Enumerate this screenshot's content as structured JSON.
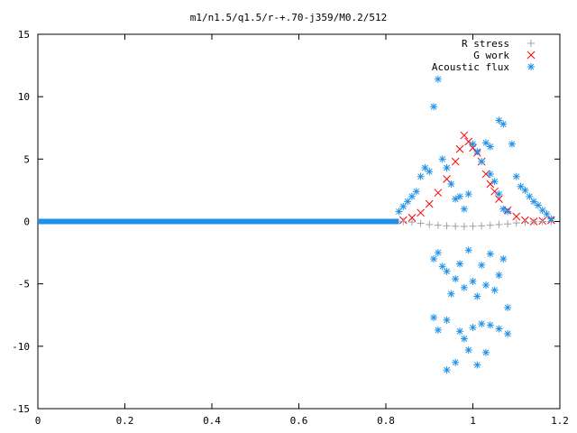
{
  "chart_data": {
    "type": "scatter",
    "title": "m1/n1.5/q1.5/r-+.70-j359/M0.2/512",
    "xlabel": "",
    "ylabel": "",
    "xlim": [
      0,
      1.2
    ],
    "ylim": [
      -15,
      15
    ],
    "x_ticks": [
      0,
      0.2,
      0.4,
      0.6,
      0.8,
      1,
      1.2
    ],
    "x_tick_labels": [
      "0",
      "0.2",
      "0.4",
      "0.6",
      "0.8",
      "1",
      "1.2"
    ],
    "y_ticks": [
      -15,
      -10,
      -5,
      0,
      5,
      10,
      15
    ],
    "y_tick_labels": [
      "-15",
      "-10",
      "-5",
      "0",
      "5",
      "10",
      "15"
    ],
    "grid": false,
    "legend_position": "top-right",
    "series": [
      {
        "name": "R stress",
        "marker": "+",
        "color": "#a0a0a0",
        "points": [
          [
            0.84,
            0.0
          ],
          [
            0.86,
            -0.05
          ],
          [
            0.88,
            -0.15
          ],
          [
            0.9,
            -0.25
          ],
          [
            0.92,
            -0.3
          ],
          [
            0.94,
            -0.35
          ],
          [
            0.96,
            -0.38
          ],
          [
            0.98,
            -0.4
          ],
          [
            1.0,
            -0.38
          ],
          [
            1.02,
            -0.35
          ],
          [
            1.04,
            -0.3
          ],
          [
            1.06,
            -0.25
          ],
          [
            1.08,
            -0.2
          ],
          [
            1.1,
            -0.12
          ],
          [
            1.12,
            -0.06
          ],
          [
            1.14,
            -0.02
          ],
          [
            1.16,
            0.0
          ],
          [
            1.18,
            0.0
          ]
        ]
      },
      {
        "name": "G work",
        "marker": "x",
        "color": "#ff0000",
        "points": [
          [
            0.84,
            0.1
          ],
          [
            0.86,
            0.3
          ],
          [
            0.88,
            0.7
          ],
          [
            0.9,
            1.4
          ],
          [
            0.92,
            2.3
          ],
          [
            0.94,
            3.4
          ],
          [
            0.96,
            4.8
          ],
          [
            0.97,
            5.8
          ],
          [
            0.98,
            6.9
          ],
          [
            0.99,
            6.4
          ],
          [
            1.0,
            5.9
          ],
          [
            1.01,
            5.5
          ],
          [
            1.02,
            4.8
          ],
          [
            1.03,
            3.8
          ],
          [
            1.04,
            3.0
          ],
          [
            1.05,
            2.4
          ],
          [
            1.06,
            1.8
          ],
          [
            1.08,
            0.9
          ],
          [
            1.1,
            0.4
          ],
          [
            1.12,
            0.1
          ],
          [
            1.14,
            0.0
          ],
          [
            1.16,
            0.05
          ],
          [
            1.18,
            0.1
          ]
        ]
      },
      {
        "name": "Acoustic flux",
        "marker": "*",
        "color": "#1e90e8",
        "points": [
          [
            0.83,
            0.8
          ],
          [
            0.84,
            1.2
          ],
          [
            0.85,
            1.6
          ],
          [
            0.86,
            2.0
          ],
          [
            0.87,
            2.4
          ],
          [
            0.88,
            3.6
          ],
          [
            0.89,
            4.3
          ],
          [
            0.9,
            4.0
          ],
          [
            0.91,
            9.2
          ],
          [
            0.92,
            11.4
          ],
          [
            0.93,
            5.0
          ],
          [
            0.94,
            4.3
          ],
          [
            0.95,
            3.0
          ],
          [
            0.96,
            1.8
          ],
          [
            0.97,
            2.0
          ],
          [
            0.98,
            1.0
          ],
          [
            0.99,
            2.2
          ],
          [
            1.0,
            6.2
          ],
          [
            1.01,
            5.6
          ],
          [
            1.02,
            4.8
          ],
          [
            1.03,
            6.3
          ],
          [
            1.04,
            3.8
          ],
          [
            1.05,
            3.2
          ],
          [
            1.06,
            2.2
          ],
          [
            1.07,
            1.0
          ],
          [
            1.08,
            0.8
          ],
          [
            1.09,
            6.2
          ],
          [
            1.1,
            3.6
          ],
          [
            1.11,
            2.8
          ],
          [
            1.12,
            2.5
          ],
          [
            1.13,
            2.0
          ],
          [
            1.14,
            1.6
          ],
          [
            1.15,
            1.3
          ],
          [
            1.16,
            0.9
          ],
          [
            1.17,
            0.6
          ],
          [
            1.18,
            0.2
          ],
          [
            1.06,
            8.1
          ],
          [
            1.07,
            7.8
          ],
          [
            1.04,
            6.0
          ],
          [
            0.92,
            -2.5
          ],
          [
            0.91,
            -3.0
          ],
          [
            0.93,
            -3.6
          ],
          [
            0.94,
            -4.0
          ],
          [
            0.95,
            -5.8
          ],
          [
            0.96,
            -4.6
          ],
          [
            0.97,
            -3.4
          ],
          [
            0.98,
            -5.3
          ],
          [
            0.99,
            -2.3
          ],
          [
            1.0,
            -4.8
          ],
          [
            1.01,
            -6.0
          ],
          [
            1.02,
            -3.5
          ],
          [
            1.03,
            -5.1
          ],
          [
            1.04,
            -2.6
          ],
          [
            1.05,
            -5.5
          ],
          [
            1.06,
            -4.3
          ],
          [
            1.07,
            -3.0
          ],
          [
            1.08,
            -6.9
          ],
          [
            0.91,
            -7.7
          ],
          [
            0.92,
            -8.7
          ],
          [
            0.94,
            -7.9
          ],
          [
            0.96,
            -11.3
          ],
          [
            0.97,
            -8.8
          ],
          [
            0.98,
            -9.4
          ],
          [
            0.99,
            -10.3
          ],
          [
            1.0,
            -8.5
          ],
          [
            1.01,
            -11.5
          ],
          [
            1.02,
            -8.2
          ],
          [
            1.03,
            -10.5
          ],
          [
            1.04,
            -8.3
          ],
          [
            1.06,
            -8.6
          ],
          [
            1.08,
            -9.0
          ],
          [
            0.94,
            -11.9
          ]
        ]
      }
    ]
  }
}
